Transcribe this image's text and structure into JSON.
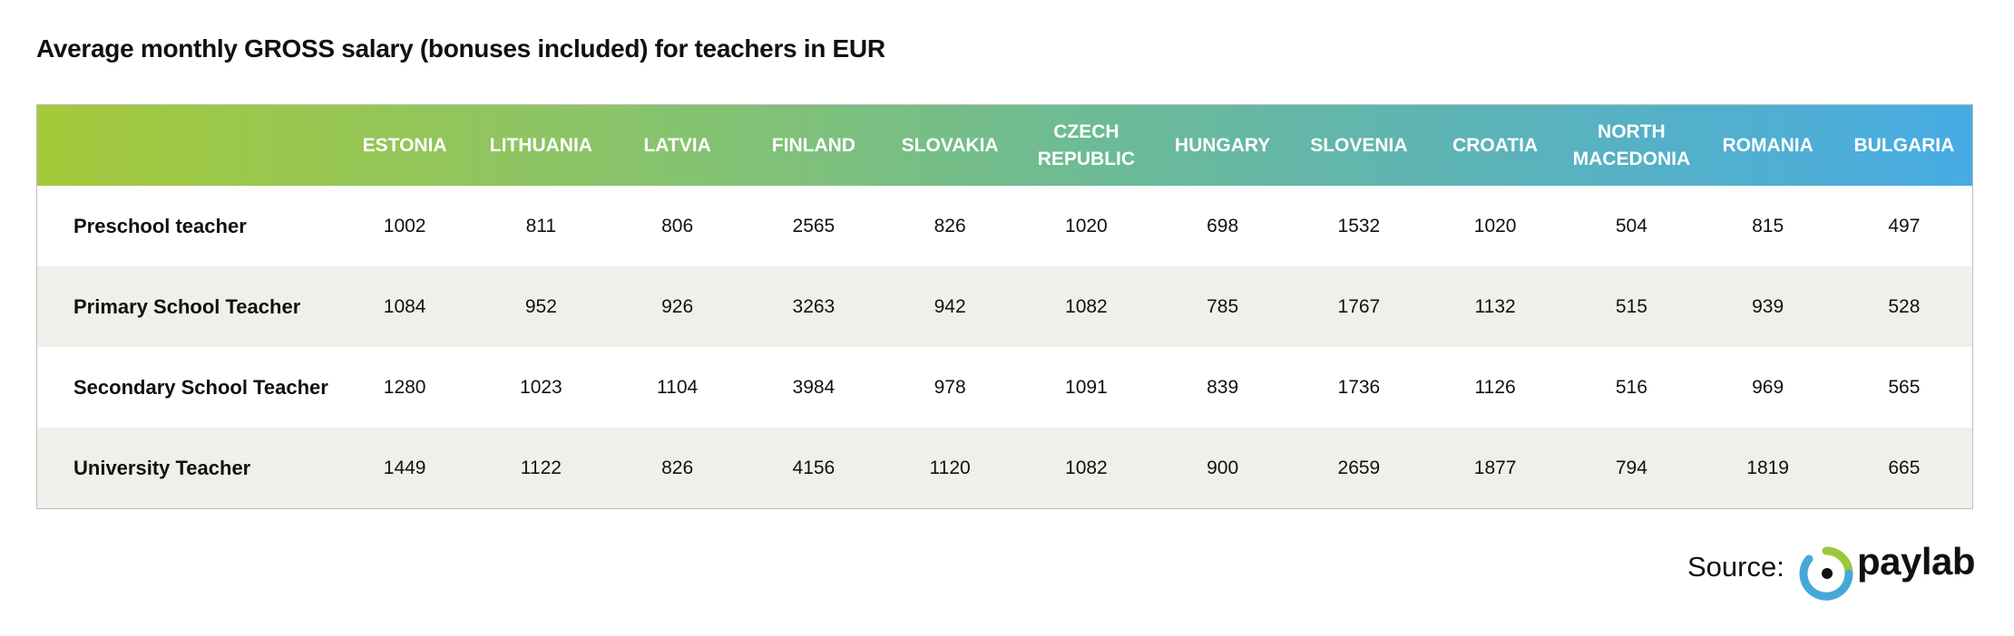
{
  "title": "Average monthly GROSS salary (bonuses included) for teachers in EUR",
  "chart_data": {
    "type": "table",
    "columns": [
      "ESTONIA",
      "LITHUANIA",
      "LATVIA",
      "FINLAND",
      "SLOVAKIA",
      "CZECH REPUBLIC",
      "HUNGARY",
      "SLOVENIA",
      "CROATIA",
      "NORTH MACEDONIA",
      "ROMANIA",
      "BULGARIA"
    ],
    "rows": [
      {
        "label": "Preschool teacher",
        "values": [
          1002,
          811,
          806,
          2565,
          826,
          1020,
          698,
          1532,
          1020,
          504,
          815,
          497
        ]
      },
      {
        "label": "Primary School Teacher",
        "values": [
          1084,
          952,
          926,
          3263,
          942,
          1082,
          785,
          1767,
          1132,
          515,
          939,
          528
        ]
      },
      {
        "label": "Secondary School Teacher",
        "values": [
          1280,
          1023,
          1104,
          3984,
          978,
          1091,
          839,
          1736,
          1126,
          516,
          969,
          565
        ]
      },
      {
        "label": "University Teacher",
        "values": [
          1449,
          1122,
          826,
          4156,
          1120,
          1082,
          900,
          2659,
          1877,
          794,
          1819,
          665
        ]
      }
    ],
    "header_gradient": [
      "#a4c93a",
      "#47ace4"
    ]
  },
  "source": {
    "label": "Source:",
    "brand": "paylab",
    "logo_colors": [
      "#9cc73b",
      "#45a9d8"
    ]
  }
}
